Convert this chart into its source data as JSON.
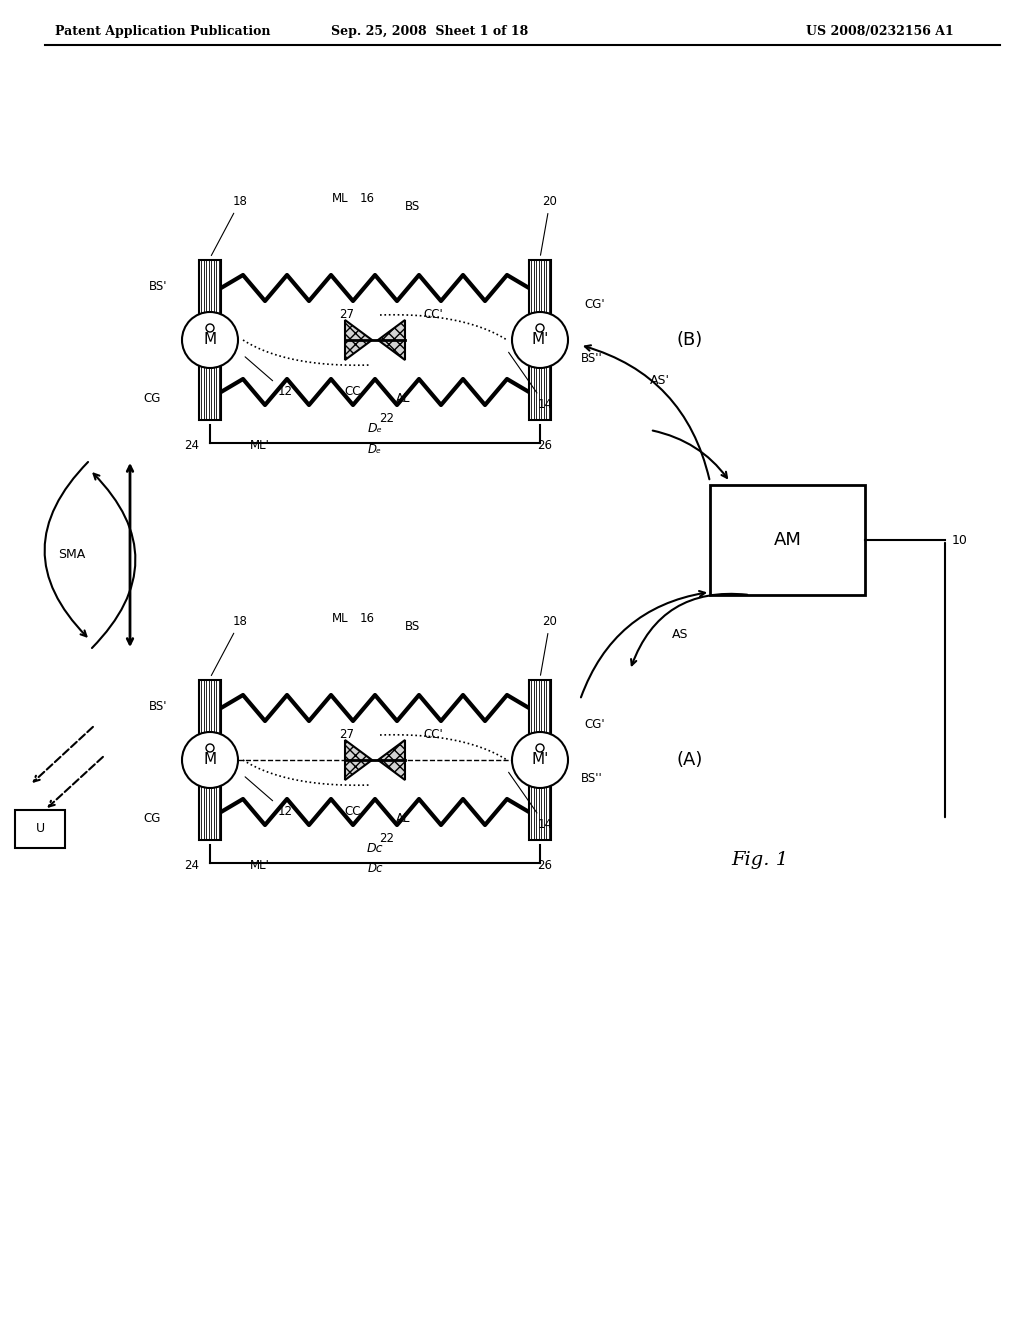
{
  "bg_color": "#ffffff",
  "header_text": "Patent Application Publication",
  "header_date": "Sep. 25, 2008  Sheet 1 of 18",
  "header_patent": "US 2008/0232156 A1",
  "fig_label": "Fig. 1"
}
